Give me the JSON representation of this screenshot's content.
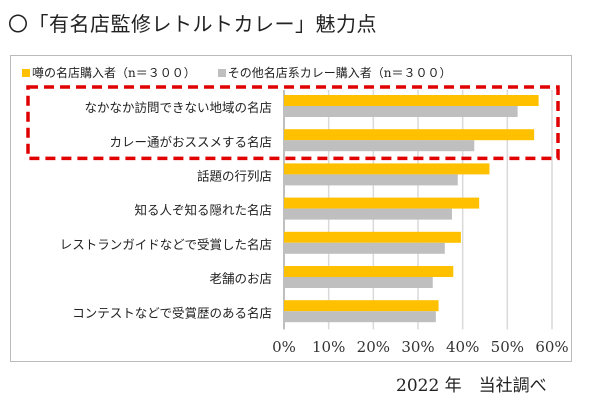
{
  "title": "〇「有名店監修レトルトカレー」魅力点",
  "footer": "2022 年　当社調べ",
  "chart_data": {
    "type": "bar",
    "orientation": "horizontal",
    "categories": [
      "なかなか訪問できない地域の名店",
      "カレー通がおススメする名店",
      "話題の行列店",
      "知る人ぞ知る隠れた名店",
      "レストランガイドなどで受賞した名店",
      "老舗のお店",
      "コンテストなどで受賞歴のある名店"
    ],
    "series": [
      {
        "name": "噂の名店購入者（n＝３００）",
        "color": "#FFC000",
        "values": [
          57,
          56,
          46,
          43.7,
          39.6,
          37.9,
          34.6
        ]
      },
      {
        "name": "その他名店系カレー購入者（n＝３００）",
        "color": "#BFBFBF",
        "values": [
          52.3,
          42.6,
          38.9,
          37.6,
          36,
          33.3,
          34
        ]
      }
    ],
    "xlim": [
      0,
      60
    ],
    "xticks": [
      "0%",
      "10%",
      "20%",
      "30%",
      "40%",
      "50%",
      "60%"
    ],
    "grid": true,
    "legend": "top",
    "highlight": {
      "categories": [
        0,
        1
      ],
      "color": "#E00000",
      "style": "dashed"
    }
  }
}
